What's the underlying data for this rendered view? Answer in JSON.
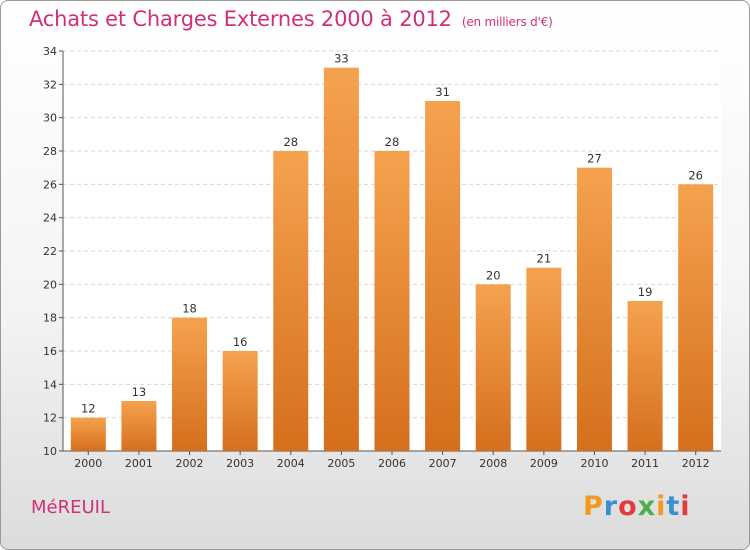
{
  "header": {
    "title": "Achats et Charges Externes 2000 à 2012",
    "subtitle": "(en milliers d'€)"
  },
  "footer": {
    "town": "MéREUIL",
    "logo": {
      "letters": [
        "P",
        "r",
        "o",
        "x",
        "i",
        "t",
        "i"
      ],
      "colors": [
        "#f29a1f",
        "#3a8fd1",
        "#e23b3b",
        "#4cae4c",
        "#f29a1f",
        "#3a8fd1",
        "#e23b3b"
      ]
    }
  },
  "colors": {
    "bar": "#f0923f",
    "bar_dark": "#d97020",
    "title": "#d0307a"
  },
  "chart_data": {
    "type": "bar",
    "title": "Achats et Charges Externes 2000 à 2012",
    "subtitle": "(en milliers d'€)",
    "categories": [
      "2000",
      "2001",
      "2002",
      "2003",
      "2004",
      "2005",
      "2006",
      "2007",
      "2008",
      "2009",
      "2010",
      "2011",
      "2012"
    ],
    "values": [
      12,
      13,
      18,
      16,
      28,
      33,
      28,
      31,
      20,
      21,
      27,
      19,
      26
    ],
    "ylim": [
      10,
      34
    ],
    "yticks": [
      10,
      12,
      14,
      16,
      18,
      20,
      22,
      24,
      26,
      28,
      30,
      32,
      34
    ],
    "grid": true,
    "xlabel": "",
    "ylabel": ""
  }
}
